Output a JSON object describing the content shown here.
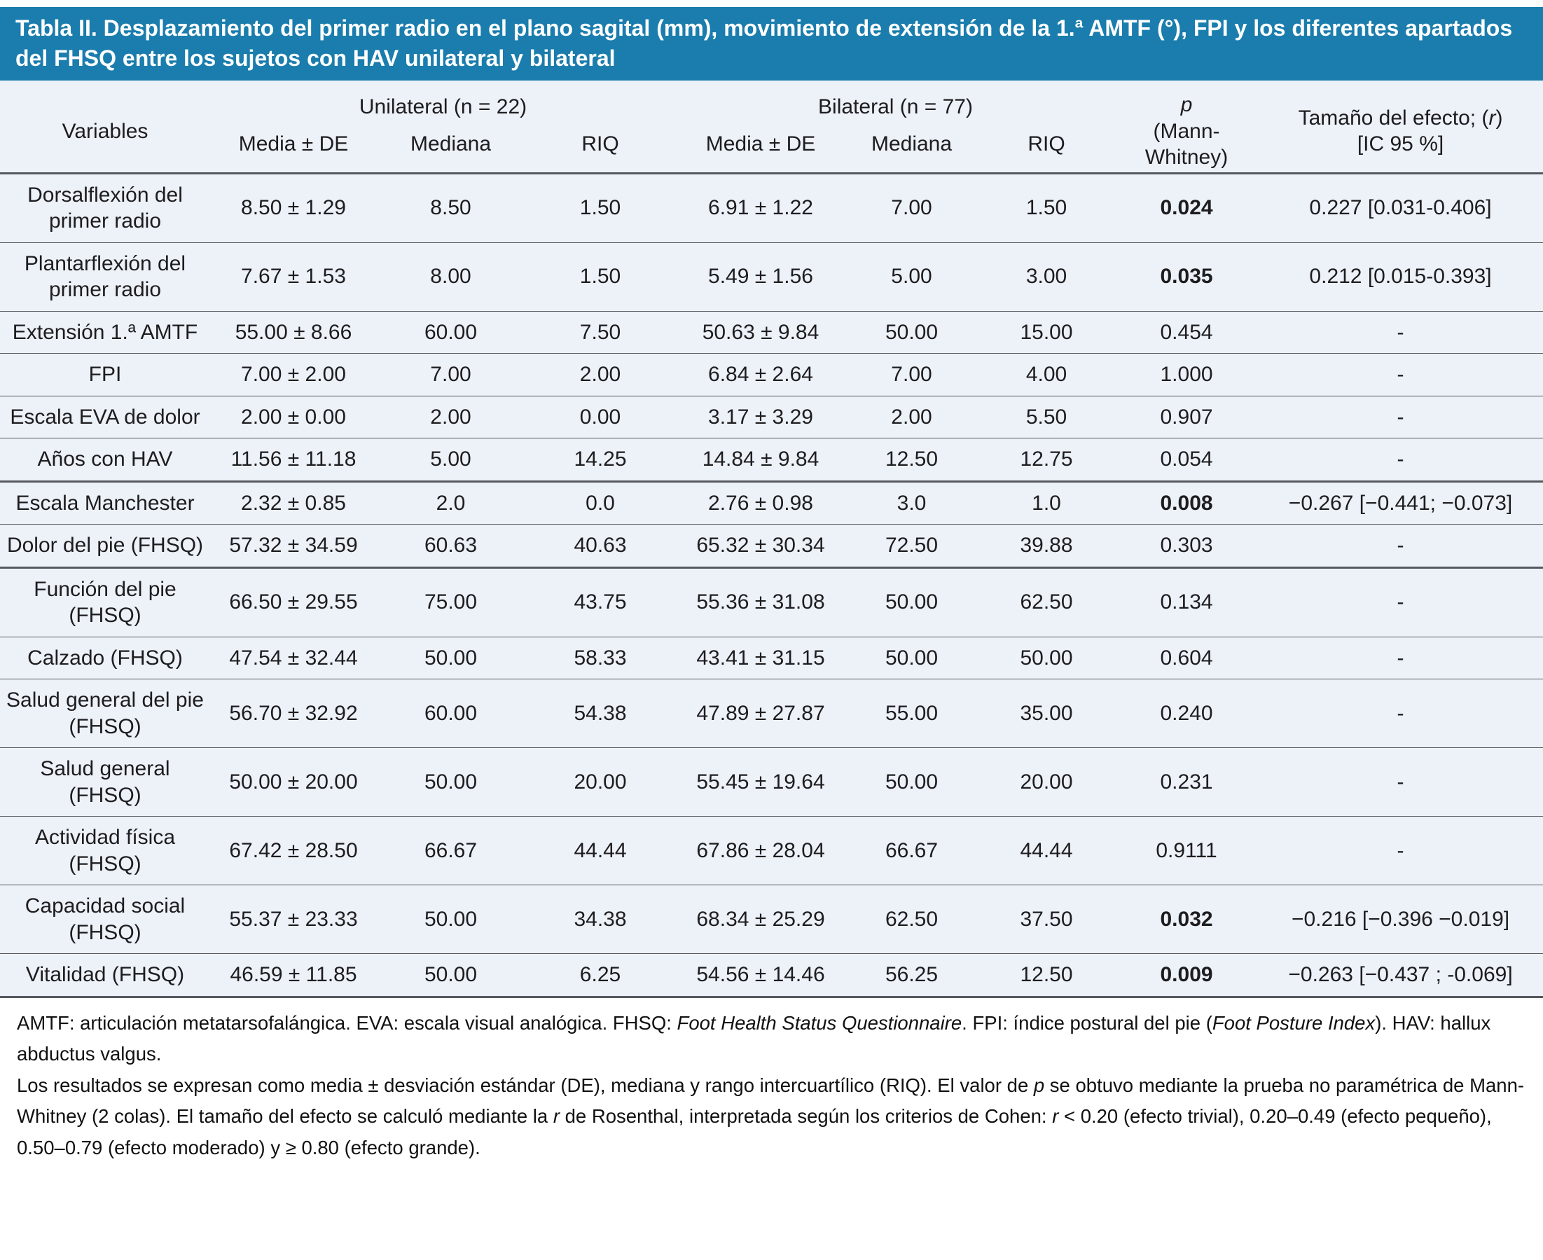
{
  "title": "Tabla II. Desplazamiento del primer radio en el plano sagital (mm), movimiento de extensión de la 1.ª AMTF (°), FPI y los diferentes apartados del FHSQ entre los sujetos con HAV unilateral y bilateral",
  "colors": {
    "title_bg": "#1a7dad",
    "title_text": "#ffffff",
    "table_bg": "#edf1f8",
    "rule": "#55585c",
    "text": "#1d1d1f"
  },
  "header": {
    "variables": "Variables",
    "group_unilateral": "Unilateral (n = 22)",
    "group_bilateral": "Bilateral (n = 77)",
    "sub_media": "Media ± DE",
    "sub_mediana": "Mediana",
    "sub_riq": "RIQ",
    "p_italic": "p",
    "p_rest_1": "(Mann-",
    "p_rest_2": "Whitney)",
    "effect_prefix": "Tamaño del efecto; (",
    "effect_r": "r",
    "effect_suffix": ")",
    "effect_line2": "[IC 95 %]"
  },
  "table": {
    "rows": [
      {
        "label": "Dorsalflexión del primer radio",
        "u_media": "8.50 ± 1.29",
        "u_mediana": "8.50",
        "u_riq": "1.50",
        "b_media": "6.91 ± 1.22",
        "b_mediana": "7.00",
        "b_riq": "1.50",
        "p": "0.024",
        "p_bold": true,
        "effect": "0.227 [0.031-0.406]",
        "sep_thick": false
      },
      {
        "label": "Plantarflexión del primer radio",
        "u_media": "7.67 ± 1.53",
        "u_mediana": "8.00",
        "u_riq": "1.50",
        "b_media": "5.49 ± 1.56",
        "b_mediana": "5.00",
        "b_riq": "3.00",
        "p": "0.035",
        "p_bold": true,
        "effect": "0.212 [0.015-0.393]",
        "sep_thick": false
      },
      {
        "label": "Extensión 1.ª AMTF",
        "u_media": "55.00 ± 8.66",
        "u_mediana": "60.00",
        "u_riq": "7.50",
        "b_media": "50.63 ± 9.84",
        "b_mediana": "50.00",
        "b_riq": "15.00",
        "p": "0.454",
        "p_bold": false,
        "effect": "-",
        "sep_thick": false
      },
      {
        "label": "FPI",
        "u_media": "7.00 ± 2.00",
        "u_mediana": "7.00",
        "u_riq": "2.00",
        "b_media": "6.84 ± 2.64",
        "b_mediana": "7.00",
        "b_riq": "4.00",
        "p": "1.000",
        "p_bold": false,
        "effect": "-",
        "sep_thick": false
      },
      {
        "label": "Escala EVA de dolor",
        "u_media": "2.00 ± 0.00",
        "u_mediana": "2.00",
        "u_riq": "0.00",
        "b_media": "3.17 ± 3.29",
        "b_mediana": "2.00",
        "b_riq": "5.50",
        "p": "0.907",
        "p_bold": false,
        "effect": "-",
        "sep_thick": false
      },
      {
        "label": "Años con HAV",
        "u_media": "11.56 ± 11.18",
        "u_mediana": "5.00",
        "u_riq": "14.25",
        "b_media": "14.84 ± 9.84",
        "b_mediana": "12.50",
        "b_riq": "12.75",
        "p": "0.054",
        "p_bold": false,
        "effect": "-",
        "sep_thick": true
      },
      {
        "label": "Escala Manchester",
        "u_media": "2.32 ± 0.85",
        "u_mediana": "2.0",
        "u_riq": "0.0",
        "b_media": "2.76 ± 0.98",
        "b_mediana": "3.0",
        "b_riq": "1.0",
        "p": "0.008",
        "p_bold": true,
        "effect": "−0.267 [−0.441; −0.073]",
        "sep_thick": false
      },
      {
        "label": "Dolor del pie (FHSQ)",
        "u_media": "57.32 ± 34.59",
        "u_mediana": "60.63",
        "u_riq": "40.63",
        "b_media": "65.32 ± 30.34",
        "b_mediana": "72.50",
        "b_riq": "39.88",
        "p": "0.303",
        "p_bold": false,
        "effect": "-",
        "sep_thick": true
      },
      {
        "label": "Función del pie (FHSQ)",
        "u_media": "66.50 ± 29.55",
        "u_mediana": "75.00",
        "u_riq": "43.75",
        "b_media": "55.36 ± 31.08",
        "b_mediana": "50.00",
        "b_riq": "62.50",
        "p": "0.134",
        "p_bold": false,
        "effect": "-",
        "sep_thick": false
      },
      {
        "label": "Calzado (FHSQ)",
        "u_media": "47.54 ± 32.44",
        "u_mediana": "50.00",
        "u_riq": "58.33",
        "b_media": "43.41 ± 31.15",
        "b_mediana": "50.00",
        "b_riq": "50.00",
        "p": "0.604",
        "p_bold": false,
        "effect": "-",
        "sep_thick": false
      },
      {
        "label": "Salud general del pie (FHSQ)",
        "u_media": "56.70 ± 32.92",
        "u_mediana": "60.00",
        "u_riq": "54.38",
        "b_media": "47.89 ± 27.87",
        "b_mediana": "55.00",
        "b_riq": "35.00",
        "p": "0.240",
        "p_bold": false,
        "effect": "-",
        "sep_thick": false
      },
      {
        "label": "Salud general (FHSQ)",
        "u_media": "50.00 ± 20.00",
        "u_mediana": "50.00",
        "u_riq": "20.00",
        "b_media": "55.45 ± 19.64",
        "b_mediana": "50.00",
        "b_riq": "20.00",
        "p": "0.231",
        "p_bold": false,
        "effect": "-",
        "sep_thick": false
      },
      {
        "label": "Actividad física (FHSQ)",
        "u_media": "67.42 ± 28.50",
        "u_mediana": "66.67",
        "u_riq": "44.44",
        "b_media": "67.86 ± 28.04",
        "b_mediana": "66.67",
        "b_riq": "44.44",
        "p": "0.9111",
        "p_bold": false,
        "effect": "-",
        "sep_thick": false
      },
      {
        "label": "Capacidad social (FHSQ)",
        "u_media": "55.37 ± 23.33",
        "u_mediana": "50.00",
        "u_riq": "34.38",
        "b_media": "68.34 ± 25.29",
        "b_mediana": "62.50",
        "b_riq": "37.50",
        "p": "0.032",
        "p_bold": true,
        "effect": "−0.216 [−0.396 −0.019]",
        "sep_thick": false
      },
      {
        "label": "Vitalidad (FHSQ)",
        "u_media": "46.59 ± 11.85",
        "u_mediana": "50.00",
        "u_riq": "6.25",
        "b_media": "54.56 ± 14.46",
        "b_mediana": "56.25",
        "b_riq": "12.50",
        "p": "0.009",
        "p_bold": true,
        "effect": "−0.263 [−0.437 ; -0.069]",
        "sep_thick": false
      }
    ]
  },
  "footnotes": [
    [
      {
        "t": "AMTF: articulación metatarsofalángica. EVA: escala visual analógica. FHSQ: "
      },
      {
        "t": "Foot Health Status Questionnaire",
        "i": true
      },
      {
        "t": ". FPI: índice postural del pie ("
      },
      {
        "t": "Foot Posture Index",
        "i": true
      },
      {
        "t": "). HAV: hallux abductus valgus."
      }
    ],
    [
      {
        "t": "Los resultados se expresan como media ± desviación estándar (DE), mediana y rango intercuartílico (RIQ). El valor de "
      },
      {
        "t": "p",
        "i": true
      },
      {
        "t": " se obtuvo mediante la prueba no paramétrica de Mann-Whitney (2 colas). El tamaño del efecto se calculó mediante la "
      },
      {
        "t": "r",
        "i": true
      },
      {
        "t": " de Rosenthal, interpretada según los criterios de Cohen: "
      },
      {
        "t": "r",
        "i": true
      },
      {
        "t": " < 0.20 (efecto trivial), 0.20–0.49 (efecto pequeño), 0.50–0.79 (efecto moderado) y ≥ 0.80 (efecto grande)."
      }
    ]
  ]
}
